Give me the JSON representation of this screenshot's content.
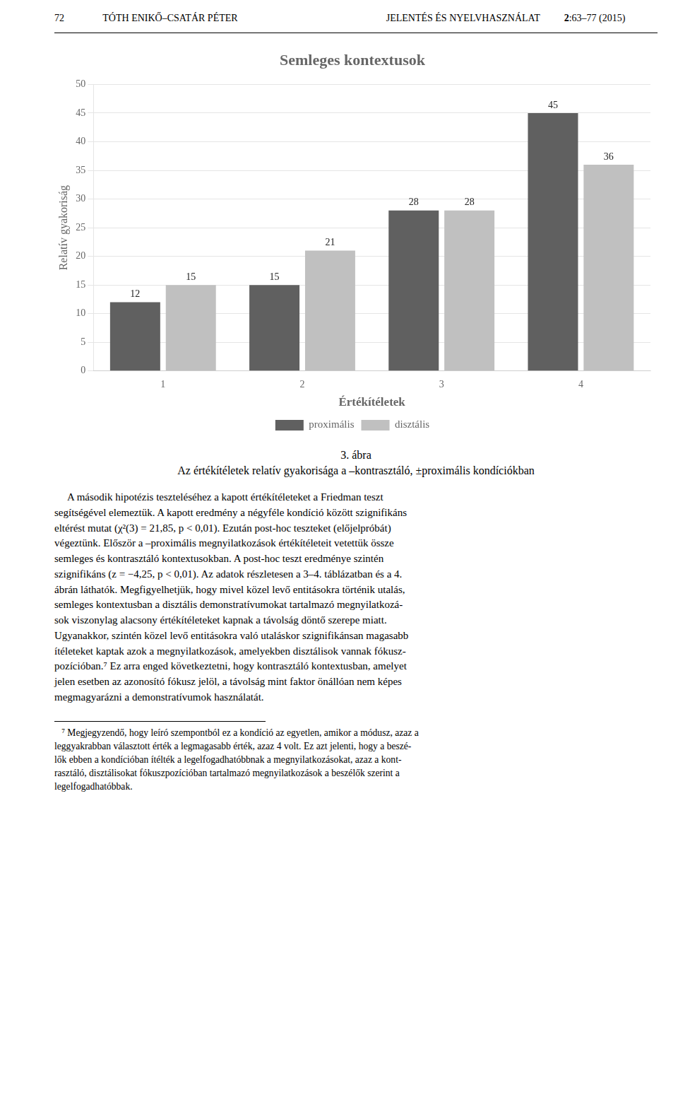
{
  "chart_data": {
    "type": "bar",
    "title": "Semleges kontextusok",
    "categories": [
      "1",
      "2",
      "3",
      "4"
    ],
    "series": [
      {
        "name": "proximális",
        "color": "#606060",
        "values": [
          12,
          15,
          28,
          45
        ]
      },
      {
        "name": "disztális",
        "color": "#c0c0c0",
        "values": [
          15,
          21,
          28,
          36
        ]
      }
    ],
    "xlabel": "Értékítéletek",
    "ylabel": "Relatív gyakoriság",
    "ylim": [
      0,
      50
    ],
    "yticks": [
      0,
      5,
      10,
      15,
      20,
      25,
      30,
      35,
      40,
      45,
      50
    ],
    "grid": true,
    "legend": "bottom",
    "data_labels": true,
    "annotations": [
      "72",
      "TÓTH ENIKŐ–CSATÁR PÉTER",
      "JELENTÉS ÉS NYELVHASZNÁLAT",
      "2",
      ":63–77 (2015)",
      "3. ábra",
      "Az értékítéletek relatív gyakorisága a –kontrasztáló, ±proximális kondíciókban",
      "     A második hipotézis teszteléséhez a kapott értékítéleteket a Friedman teszt\nsegítségével elemeztük. A kapott eredmény a négyféle kondíció között szignifikáns\neltérést mutat (χ²(3) = 21,85, p < 0,01). Ezután post-hoc teszteket (előjelpróbát)\nvégeztünk. Először a –proximális megnyilatkozások értékítéleteit vetettük össze\nsemleges és kontrasztáló kontextusokban. A post-hoc teszt eredménye szintén\nszignifikáns (z = −4,25, p < 0,01). Az adatok részletesen a 3–4. táblázatban és a 4.\nábrán láthatók. Megfigyelhetjük, hogy mivel közel levő entitásokra történik utalás,\nsemleges kontextusban a disztális demonstratívumokat tartalmazó megnyilatkozá-\nsok viszonylag alacsony értékítéleteket kapnak a távolság döntő szerepe miatt.\nUgyanakkor, szintén közel levő entitásokra való utaláskor szignifikánsan magasabb\nítéleteket kaptak azok a megnyilatkozások, amelyekben disztálisok vannak fókusz-\npozícióban.⁷ Ez arra enged következtetni, hogy kontrasztáló kontextusban, amelyet\njelen esetben az azonosító fókusz jelöl, a távolság mint faktor önállóan nem képes\nmegmagyarázni a demonstratívumok használatát.",
      "   ⁷ Megjegyzendő, hogy leíró szempontból ez a kondíció az egyetlen, amikor a módusz, azaz a\nleggyakrabban választott érték a legmagasabb érték, azaz 4 volt. Ez azt jelenti, hogy a beszé-\nlők ebben a kondícióban ítélték a legelfogadhatóbbnak a megnyilatkozásokat, azaz a kont-\nrasztáló, disztálisokat fókuszpozícióban tartalmazó megnyilatkozások a beszélők szerint a\nlegelfogadhatóbbak."
    ]
  }
}
